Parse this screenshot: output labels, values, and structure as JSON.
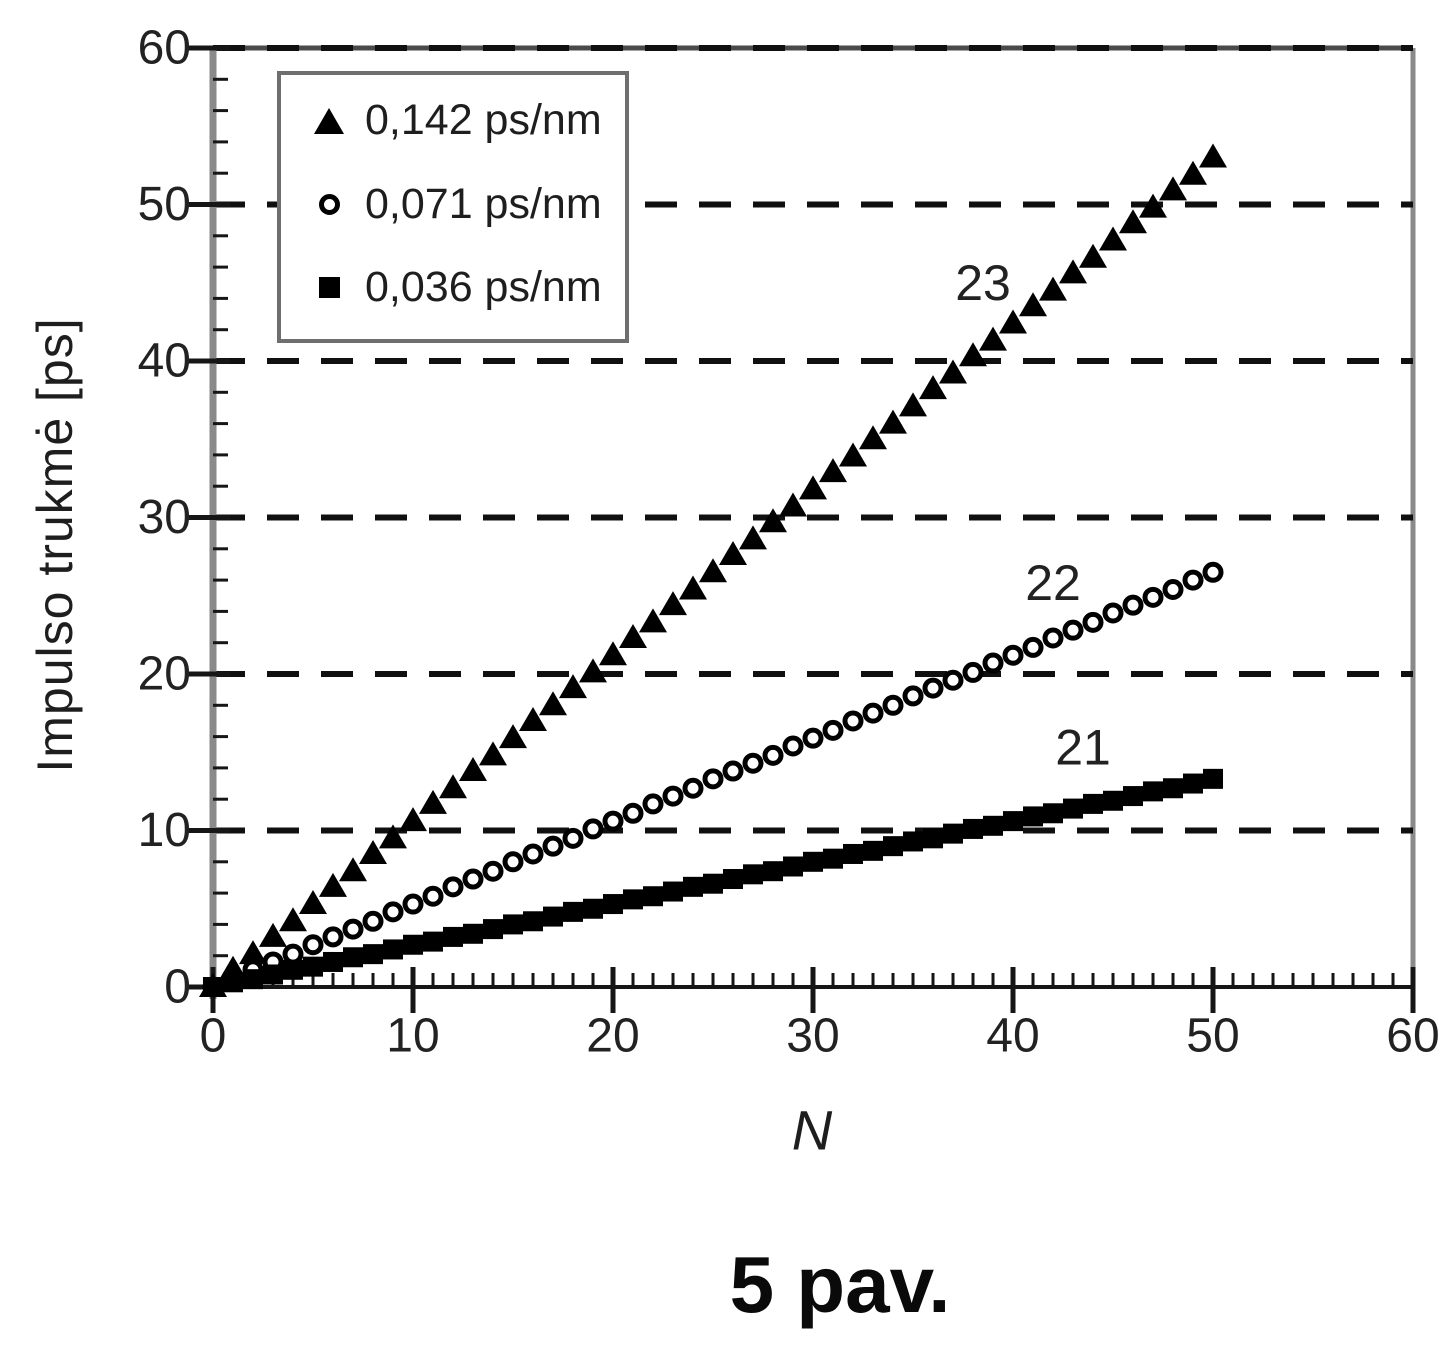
{
  "figure": {
    "caption": "5 pav."
  },
  "chart_data": {
    "type": "scatter",
    "title": "",
    "xlabel": "N",
    "ylabel": "Impulso trukmė [ps]",
    "xlim": [
      0,
      60
    ],
    "ylim": [
      0,
      60
    ],
    "x_major_ticks": [
      0,
      10,
      20,
      30,
      40,
      50,
      60
    ],
    "x_minor_step": 1,
    "y_major_ticks": [
      0,
      10,
      20,
      30,
      40,
      50,
      60
    ],
    "y_minor_step": 2,
    "grid": {
      "axis": "y",
      "style": "dashed",
      "values": [
        10,
        20,
        30,
        40,
        50,
        60
      ]
    },
    "legend": {
      "position": "top-left",
      "entries": [
        {
          "marker": "filled-triangle",
          "label": "0,142 ps/nm"
        },
        {
          "marker": "open-circle",
          "label": "0,071 ps/nm"
        },
        {
          "marker": "filled-square",
          "label": "0,036 ps/nm"
        }
      ]
    },
    "annotations": [
      {
        "text": "23",
        "x": 38.5,
        "y": 45.0
      },
      {
        "text": "22",
        "x": 42.0,
        "y": 25.8
      },
      {
        "text": "21",
        "x": 43.5,
        "y": 15.3
      }
    ],
    "x": [
      0,
      1,
      2,
      3,
      4,
      5,
      6,
      7,
      8,
      9,
      10,
      11,
      12,
      13,
      14,
      15,
      16,
      17,
      18,
      19,
      20,
      21,
      22,
      23,
      24,
      25,
      26,
      27,
      28,
      29,
      30,
      31,
      32,
      33,
      34,
      35,
      36,
      37,
      38,
      39,
      40,
      41,
      42,
      43,
      44,
      45,
      46,
      47,
      48,
      49,
      50
    ],
    "series": [
      {
        "name": "23",
        "legend_label": "0,142 ps/nm",
        "marker": "filled-triangle",
        "values": [
          0,
          1.1,
          2.1,
          3.2,
          4.2,
          5.3,
          6.4,
          7.4,
          8.5,
          9.5,
          10.6,
          11.7,
          12.7,
          13.8,
          14.8,
          15.9,
          17,
          18,
          19.1,
          20.1,
          21.2,
          22.3,
          23.3,
          24.4,
          25.4,
          26.5,
          27.6,
          28.6,
          29.7,
          30.7,
          31.8,
          32.9,
          33.9,
          35,
          36,
          37.1,
          38.2,
          39.2,
          40.3,
          41.3,
          42.4,
          43.5,
          44.5,
          45.6,
          46.6,
          47.7,
          48.8,
          49.8,
          50.9,
          51.9,
          53
        ]
      },
      {
        "name": "22",
        "legend_label": "0,071 ps/nm",
        "marker": "open-circle",
        "values": [
          0,
          0.5,
          1.1,
          1.6,
          2.1,
          2.7,
          3.2,
          3.7,
          4.2,
          4.8,
          5.3,
          5.8,
          6.4,
          6.9,
          7.4,
          8,
          8.5,
          9,
          9.5,
          10.1,
          10.6,
          11.1,
          11.7,
          12.2,
          12.7,
          13.3,
          13.8,
          14.3,
          14.8,
          15.4,
          15.9,
          16.4,
          17,
          17.5,
          18,
          18.6,
          19.1,
          19.6,
          20.1,
          20.7,
          21.2,
          21.7,
          22.3,
          22.8,
          23.3,
          23.9,
          24.4,
          24.9,
          25.4,
          26,
          26.5
        ]
      },
      {
        "name": "21",
        "legend_label": "0,036 ps/nm",
        "marker": "filled-square",
        "values": [
          0,
          0.3,
          0.5,
          0.8,
          1.1,
          1.3,
          1.6,
          1.9,
          2.1,
          2.4,
          2.7,
          2.9,
          3.2,
          3.4,
          3.7,
          4,
          4.2,
          4.5,
          4.8,
          5,
          5.3,
          5.6,
          5.8,
          6.1,
          6.4,
          6.6,
          6.9,
          7.2,
          7.4,
          7.7,
          8,
          8.2,
          8.5,
          8.7,
          9,
          9.3,
          9.5,
          9.8,
          10.1,
          10.3,
          10.6,
          10.9,
          11.1,
          11.4,
          11.7,
          11.9,
          12.2,
          12.5,
          12.7,
          13,
          13.3
        ]
      }
    ]
  }
}
